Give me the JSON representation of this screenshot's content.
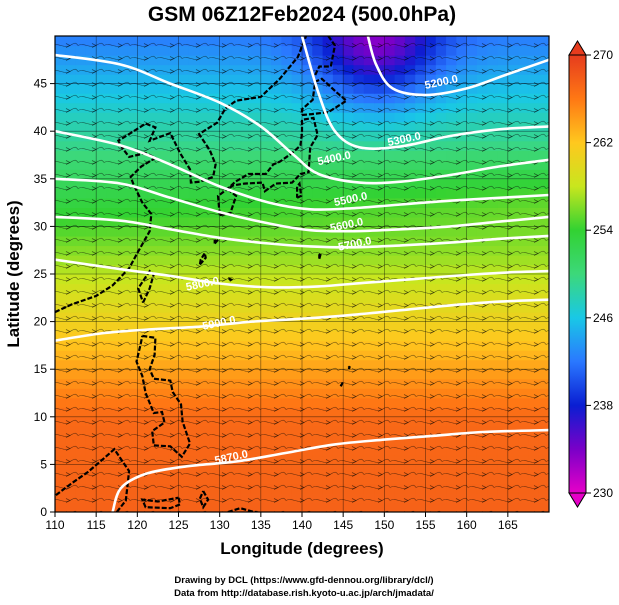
{
  "chart_data": {
    "type": "heatmap",
    "title": "GSM 06Z12Feb2024 (500.0hPa)",
    "xlabel": "Longitude (degrees)",
    "ylabel": "Latitude  (degrees)",
    "xlim": [
      110,
      170
    ],
    "ylim": [
      0,
      50
    ],
    "x_ticks": [
      110,
      115,
      120,
      125,
      130,
      135,
      140,
      145,
      150,
      155,
      160,
      165
    ],
    "y_ticks": [
      0,
      5,
      10,
      15,
      20,
      25,
      30,
      35,
      40,
      45
    ],
    "grid": true,
    "colorbar": {
      "min": 230,
      "max": 270,
      "ticks": [
        230,
        238,
        246,
        254,
        262,
        270
      ],
      "colors": [
        "#e600c8",
        "#7a00c8",
        "#0a1ed2",
        "#2a78ff",
        "#19c8e6",
        "#3cd87a",
        "#32d232",
        "#c8e61e",
        "#ffc81e",
        "#ff7814",
        "#e63c1e"
      ]
    },
    "contour_labels": [
      {
        "text": "5200.0",
        "lon": 157.0,
        "lat": 44.8
      },
      {
        "text": "5300.0",
        "lon": 152.5,
        "lat": 38.8
      },
      {
        "text": "5400.0",
        "lon": 144.0,
        "lat": 36.8
      },
      {
        "text": "5500.0",
        "lon": 146.0,
        "lat": 32.5
      },
      {
        "text": "5600.0",
        "lon": 145.5,
        "lat": 29.8
      },
      {
        "text": "5700.0",
        "lon": 146.5,
        "lat": 27.8
      },
      {
        "text": "5800.0",
        "lon": 128.0,
        "lat": 23.6
      },
      {
        "text": "5900.0",
        "lon": 130.0,
        "lat": 19.5
      },
      {
        "text": "5870.0",
        "lon": 131.5,
        "lat": 5.4
      }
    ],
    "contours": [
      {
        "value": "5200.0",
        "points": [
          [
            148,
            50
          ],
          [
            149,
            47
          ],
          [
            151,
            44.5
          ],
          [
            155,
            43.8
          ],
          [
            160,
            44.5
          ],
          [
            165,
            46
          ],
          [
            170,
            47.5
          ]
        ]
      },
      {
        "value": "5300.0",
        "points": [
          [
            140,
            50
          ],
          [
            142,
            44
          ],
          [
            144,
            40
          ],
          [
            147,
            38.3
          ],
          [
            152,
            38.4
          ],
          [
            158,
            39.5
          ],
          [
            164,
            40.2
          ],
          [
            170,
            40.5
          ]
        ]
      },
      {
        "value": "5400.0",
        "points": [
          [
            110,
            48
          ],
          [
            118,
            47
          ],
          [
            124,
            45
          ],
          [
            130,
            43
          ],
          [
            135,
            40.5
          ],
          [
            139,
            37.5
          ],
          [
            142,
            35.5
          ],
          [
            147,
            34.6
          ],
          [
            152,
            34.7
          ],
          [
            158,
            35.4
          ],
          [
            164,
            36.3
          ],
          [
            170,
            37
          ]
        ]
      },
      {
        "value": "5500.0",
        "points": [
          [
            110,
            40
          ],
          [
            118,
            38.5
          ],
          [
            124,
            36.5
          ],
          [
            130,
            34.2
          ],
          [
            136,
            32.5
          ],
          [
            141,
            31.8
          ],
          [
            146,
            31.9
          ],
          [
            152,
            32.3
          ],
          [
            158,
            32.7
          ],
          [
            164,
            33
          ],
          [
            170,
            33.3
          ]
        ]
      },
      {
        "value": "5600.0",
        "points": [
          [
            110,
            35
          ],
          [
            118,
            34.5
          ],
          [
            124,
            33
          ],
          [
            130,
            31.5
          ],
          [
            136,
            30.3
          ],
          [
            141,
            29.6
          ],
          [
            146,
            29.5
          ],
          [
            152,
            29.7
          ],
          [
            158,
            30
          ],
          [
            164,
            30.5
          ],
          [
            170,
            31
          ]
        ]
      },
      {
        "value": "5700.0",
        "points": [
          [
            110,
            31
          ],
          [
            118,
            30.6
          ],
          [
            124,
            29.7
          ],
          [
            130,
            28.8
          ],
          [
            136,
            28.2
          ],
          [
            141,
            27.9
          ],
          [
            146,
            27.8
          ],
          [
            152,
            28
          ],
          [
            158,
            28.3
          ],
          [
            164,
            28.7
          ],
          [
            170,
            29
          ]
        ]
      },
      {
        "value": "5800.0",
        "points": [
          [
            110,
            26.5
          ],
          [
            118,
            25.5
          ],
          [
            124,
            24.8
          ],
          [
            130,
            24
          ],
          [
            136,
            23.6
          ],
          [
            142,
            23.7
          ],
          [
            148,
            24.1
          ],
          [
            154,
            24.5
          ],
          [
            160,
            24.9
          ],
          [
            166,
            25.2
          ],
          [
            170,
            25.3
          ]
        ]
      },
      {
        "value": "5900.0",
        "points": [
          [
            110,
            18
          ],
          [
            116,
            18.8
          ],
          [
            122,
            19.2
          ],
          [
            128,
            19.5
          ],
          [
            134,
            20
          ],
          [
            140,
            20.3
          ],
          [
            146,
            20.7
          ],
          [
            152,
            21.2
          ],
          [
            158,
            21.7
          ],
          [
            164,
            22.1
          ],
          [
            170,
            22.3
          ]
        ]
      },
      {
        "value": "5870.0",
        "points": [
          [
            117,
            0
          ],
          [
            118,
            2.5
          ],
          [
            121,
            4
          ],
          [
            126,
            4.8
          ],
          [
            132,
            5.3
          ],
          [
            138,
            6.2
          ],
          [
            144,
            7.1
          ],
          [
            150,
            7.6
          ],
          [
            156,
            8
          ],
          [
            162,
            8.4
          ],
          [
            170,
            8.6
          ]
        ]
      }
    ]
  }
}
